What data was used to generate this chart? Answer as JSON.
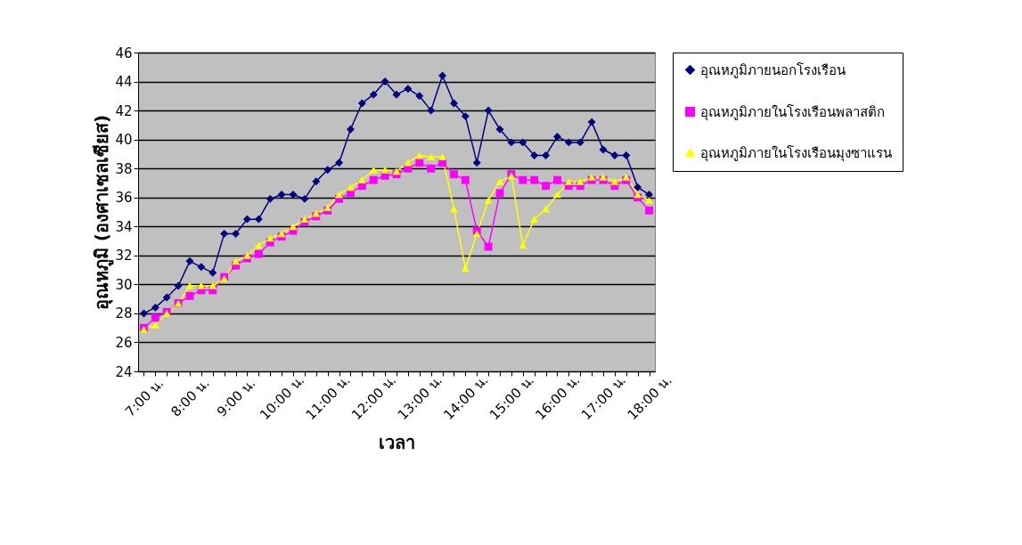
{
  "chart_data": {
    "type": "line",
    "xlabel": "เวลา",
    "ylabel": "อุณหภูมิ (องศาเซลเซียส)",
    "categories": [
      "7:00 น.",
      null,
      null,
      null,
      "8:00 น.",
      null,
      null,
      null,
      "9:00 น.",
      null,
      null,
      null,
      "10:00 น.",
      null,
      null,
      null,
      "11:00 น.",
      null,
      null,
      null,
      "12:00 น.",
      null,
      null,
      null,
      "13:00 น.",
      null,
      null,
      null,
      "14:00 น.",
      null,
      null,
      null,
      "15:00 น.",
      null,
      null,
      null,
      "16:00 น.",
      null,
      null,
      null,
      "17:00 น.",
      null,
      null,
      null,
      "18:00 น."
    ],
    "series": [
      {
        "name": "อุณหภูมิภายนอกโรงเรือน",
        "color": "#000080",
        "marker": "diamond",
        "values": [
          28.0,
          28.4,
          29.1,
          29.9,
          31.6,
          31.2,
          30.8,
          33.5,
          33.5,
          34.5,
          34.5,
          35.9,
          36.2,
          36.2,
          35.9,
          37.1,
          37.9,
          38.4,
          40.7,
          42.5,
          43.1,
          44.0,
          43.1,
          43.5,
          43.0,
          42.0,
          44.4,
          42.5,
          41.6,
          38.4,
          42.0,
          40.7,
          39.8,
          39.8,
          38.9,
          38.9,
          40.2,
          39.8,
          39.8,
          41.2,
          39.3,
          38.9,
          38.9,
          36.7,
          36.2
        ]
      },
      {
        "name": "อุณหภูมิภายในโรงเรือนพลาสติก",
        "color": "#ff00ff",
        "marker": "square",
        "values": [
          27.0,
          27.7,
          28.1,
          28.7,
          29.2,
          29.6,
          29.6,
          30.5,
          31.3,
          31.8,
          32.1,
          32.9,
          33.3,
          33.7,
          34.3,
          34.7,
          35.1,
          35.9,
          36.3,
          36.8,
          37.2,
          37.5,
          37.6,
          38.0,
          38.4,
          38.0,
          38.4,
          37.6,
          37.2,
          33.7,
          32.6,
          36.3,
          37.6,
          37.2,
          37.2,
          36.8,
          37.2,
          36.8,
          36.8,
          37.2,
          37.2,
          36.8,
          37.2,
          36.0,
          35.1
        ]
      },
      {
        "name": "อุณหภูมิภายในโรงเรือนมุงซาแรน",
        "color": "#ffff00",
        "marker": "triangle",
        "values": [
          26.9,
          27.2,
          28.0,
          28.7,
          29.9,
          29.9,
          29.9,
          30.4,
          31.6,
          32.0,
          32.7,
          33.2,
          33.5,
          34.0,
          34.5,
          34.9,
          35.3,
          36.2,
          36.7,
          37.2,
          37.9,
          37.9,
          37.8,
          38.4,
          38.9,
          38.8,
          38.8,
          35.2,
          31.1,
          33.5,
          35.8,
          37.1,
          37.5,
          32.7,
          34.5,
          35.2,
          36.2,
          37.1,
          37.1,
          37.4,
          37.4,
          37.1,
          37.4,
          36.2,
          35.8
        ]
      }
    ],
    "ylim": [
      24,
      46
    ],
    "yticks": [
      24,
      26,
      28,
      30,
      32,
      34,
      36,
      38,
      40,
      42,
      44,
      46
    ],
    "grid": "y",
    "legend": "right",
    "line_style": "solid"
  }
}
